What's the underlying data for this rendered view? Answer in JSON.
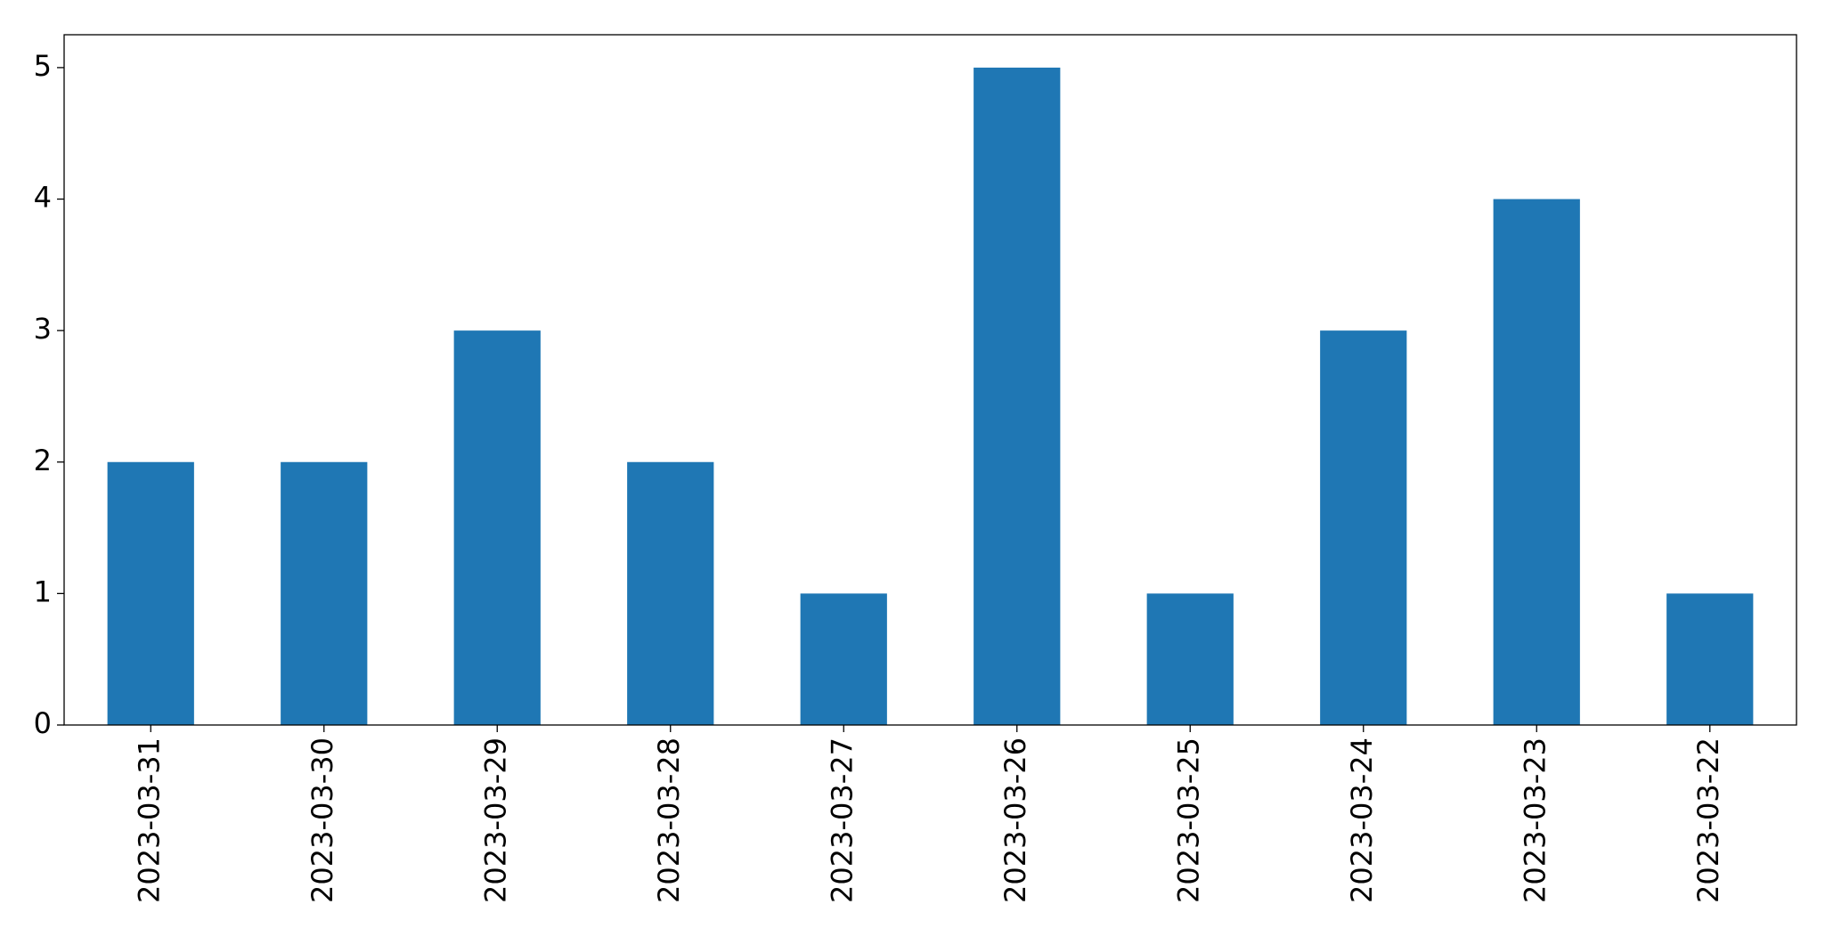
{
  "chart_data": {
    "type": "bar",
    "categories": [
      "2023-03-31",
      "2023-03-30",
      "2023-03-29",
      "2023-03-28",
      "2023-03-27",
      "2023-03-26",
      "2023-03-25",
      "2023-03-24",
      "2023-03-23",
      "2023-03-22"
    ],
    "values": [
      2,
      2,
      3,
      2,
      1,
      5,
      1,
      3,
      4,
      1
    ],
    "color": "#1f77b4",
    "ylim": [
      0,
      5.25
    ],
    "yticks": [
      0,
      1,
      2,
      3,
      4,
      5
    ],
    "grid": false
  }
}
